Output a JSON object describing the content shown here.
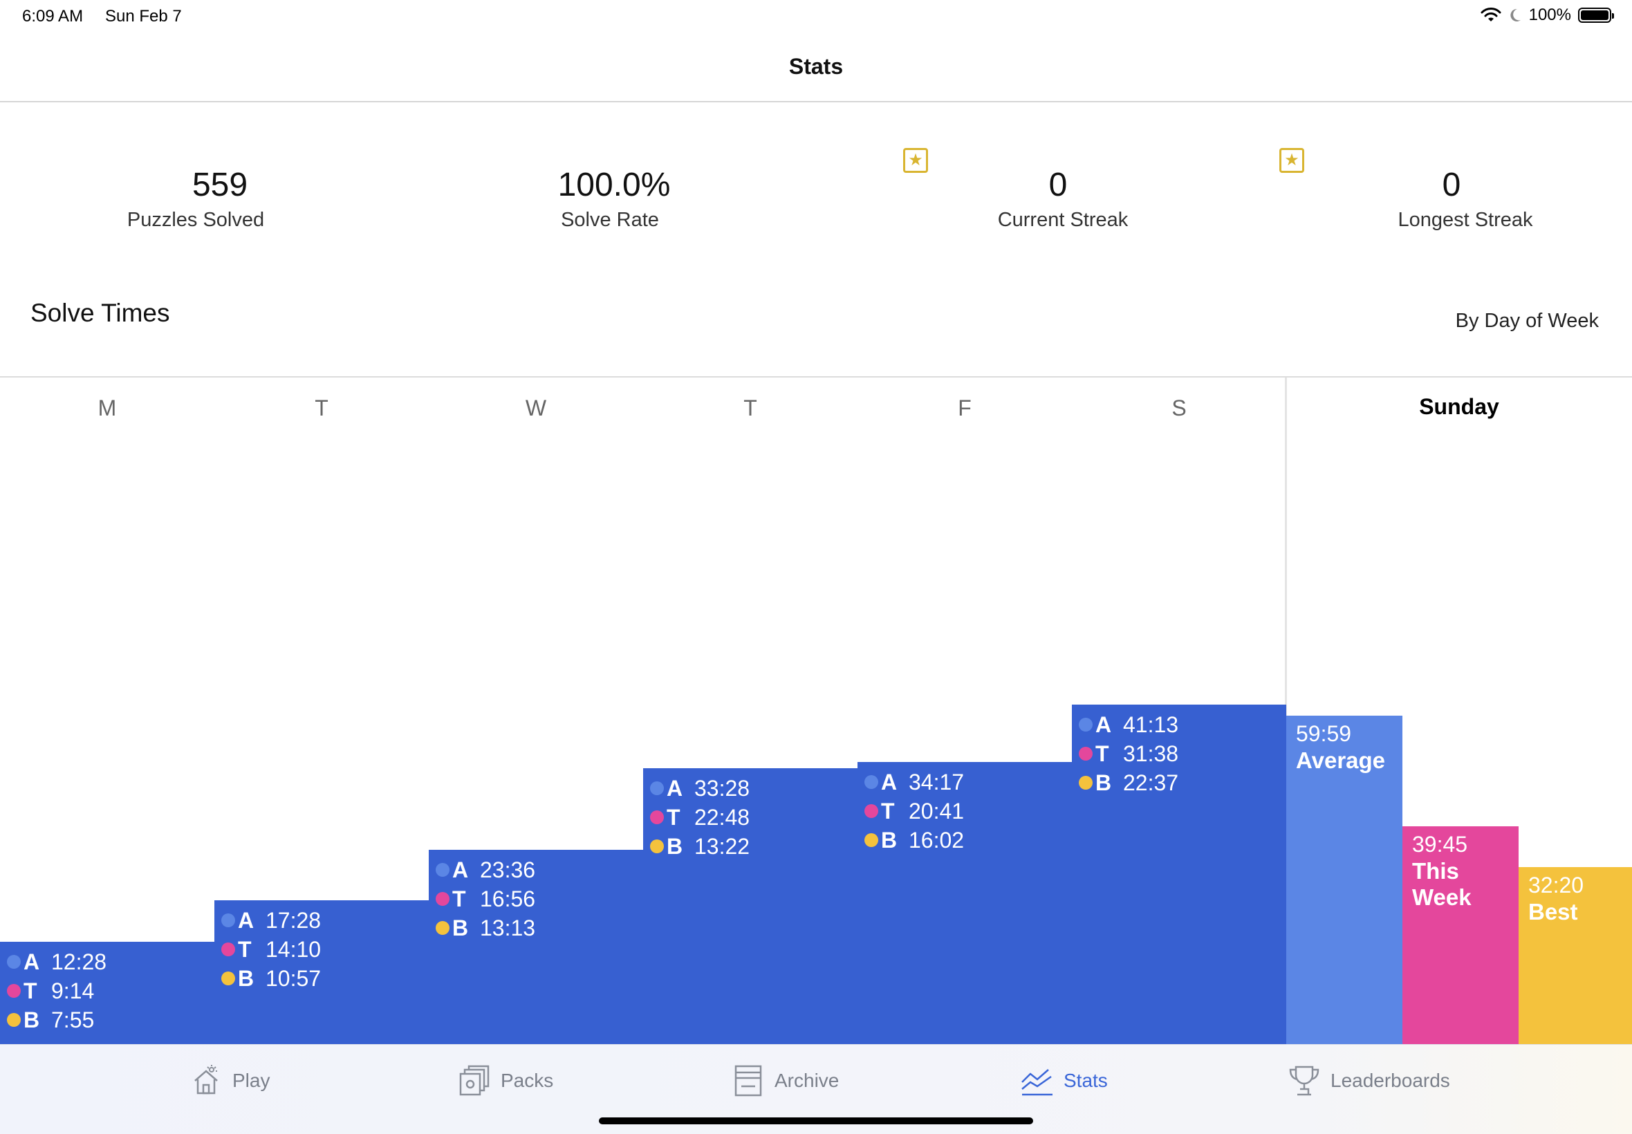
{
  "status_bar": {
    "time": "6:09 AM",
    "date": "Sun Feb 7",
    "battery": "100%"
  },
  "header": {
    "title": "Stats"
  },
  "summary": [
    {
      "value": "559",
      "label": "Puzzles Solved"
    },
    {
      "value": "100.0%",
      "label": "Solve Rate"
    },
    {
      "value": "0",
      "label": "Current Streak"
    },
    {
      "value": "0",
      "label": "Longest Streak"
    }
  ],
  "solve_times": {
    "title": "Solve Times",
    "view_mode": "By Day of Week",
    "days": [
      {
        "label": "M",
        "average": "12:28",
        "this_week": "9:14",
        "best": "7:55"
      },
      {
        "label": "T",
        "average": "17:28",
        "this_week": "14:10",
        "best": "10:57"
      },
      {
        "label": "W",
        "average": "23:36",
        "this_week": "16:56",
        "best": "13:13"
      },
      {
        "label": "T",
        "average": "33:28",
        "this_week": "22:48",
        "best": "13:22"
      },
      {
        "label": "F",
        "average": "34:17",
        "this_week": "20:41",
        "best": "16:02"
      },
      {
        "label": "S",
        "average": "41:13",
        "this_week": "31:38",
        "best": "22:37"
      }
    ],
    "row_letters": {
      "average": "A",
      "this_week": "T",
      "best": "B"
    },
    "selected_day": {
      "label": "Sunday",
      "average": {
        "time": "59:59",
        "label": "Average"
      },
      "this_week": {
        "time": "39:45",
        "label": "This Week"
      },
      "best": {
        "time": "32:20",
        "label": "Best"
      }
    }
  },
  "colors": {
    "bar": "#3760d1",
    "average": "#5b86e5",
    "this_week": "#e4479c",
    "best": "#f4c23d",
    "tab_active": "#3a66d8"
  },
  "tabs": [
    {
      "label": "Play",
      "icon": "play-house-icon",
      "active": false
    },
    {
      "label": "Packs",
      "icon": "packs-icon",
      "active": false
    },
    {
      "label": "Archive",
      "icon": "archive-icon",
      "active": false
    },
    {
      "label": "Stats",
      "icon": "stats-icon",
      "active": true
    },
    {
      "label": "Leaderboards",
      "icon": "trophy-icon",
      "active": false
    }
  ]
}
